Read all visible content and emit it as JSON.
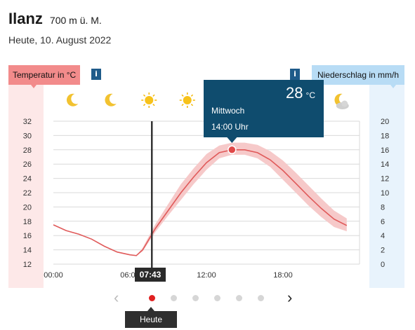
{
  "location": {
    "name": "Ilanz",
    "elevation": "700 m ü. M."
  },
  "date_label": "Heute, 10. August 2022",
  "temp_label": "Temperatur in °C",
  "precip_label": "Niederschlag in mm/h",
  "info_glyph": "i",
  "tooltip": {
    "temp": "28",
    "unit": "°C",
    "day": "Mittwoch",
    "time": "14:00 Uhr"
  },
  "now_time": "07:43",
  "today_label": "Heute",
  "colors": {
    "line": "#e05a5a",
    "band": "#f6c9c9",
    "tooltip": "#0f4c6e",
    "temp_badge": "#f28b8b",
    "precip_badge": "#b8dcf5"
  },
  "weather_icons": [
    {
      "hour": 1.5,
      "icon": "moon-icon"
    },
    {
      "hour": 4.5,
      "icon": "moon-icon"
    },
    {
      "hour": 7.5,
      "icon": "sun-icon"
    },
    {
      "hour": 10.5,
      "icon": "sun-icon"
    },
    {
      "hour": 22.5,
      "icon": "moon-cloud-icon"
    }
  ],
  "pager": {
    "count": 6,
    "active": 0
  },
  "chart_data": {
    "type": "line",
    "x_ticks": [
      "00:00",
      "06:00",
      "12:00",
      "18:00"
    ],
    "x_tick_hours": [
      0,
      6,
      12,
      18
    ],
    "xlim": [
      0,
      24
    ],
    "y_left_ticks": [
      12,
      14,
      16,
      18,
      20,
      22,
      24,
      26,
      28,
      30,
      32
    ],
    "ylim_left": [
      12,
      32
    ],
    "y_right_ticks": [
      0,
      2,
      4,
      6,
      8,
      10,
      12,
      14,
      16,
      18,
      20
    ],
    "ylim_right": [
      0,
      20
    ],
    "grid": true,
    "current_hour": 7.72,
    "highlight": {
      "hour": 14,
      "value": 28
    },
    "series": [
      {
        "hours": [
          0,
          1,
          2,
          3,
          4,
          5,
          6,
          6.5,
          7,
          8,
          9,
          10,
          11,
          12,
          13,
          14,
          15,
          16,
          17,
          18,
          19,
          20,
          21,
          22,
          23
        ],
        "values": [
          17.5,
          16.7,
          16.2,
          15.5,
          14.5,
          13.7,
          13.3,
          13.2,
          14,
          17,
          19.5,
          22,
          24.2,
          26.2,
          27.6,
          28,
          28,
          27.6,
          26.6,
          25.1,
          23.3,
          21.5,
          19.8,
          18.3,
          17.4
        ],
        "band_low": [
          17.5,
          16.7,
          16.2,
          15.5,
          14.5,
          13.7,
          13.3,
          13.2,
          13.8,
          16.5,
          18.8,
          21,
          23.2,
          25.2,
          26.8,
          27.3,
          27.3,
          26.8,
          25.6,
          23.8,
          22,
          20.2,
          18.6,
          17.2,
          16.6
        ],
        "band_high": [
          17.5,
          16.7,
          16.2,
          15.5,
          14.5,
          13.7,
          13.3,
          13.2,
          14.3,
          17.6,
          20.4,
          23.2,
          25.4,
          27.4,
          28.6,
          29,
          29,
          28.7,
          27.8,
          26.5,
          24.8,
          23,
          21.2,
          19.5,
          18.4
        ]
      }
    ]
  }
}
